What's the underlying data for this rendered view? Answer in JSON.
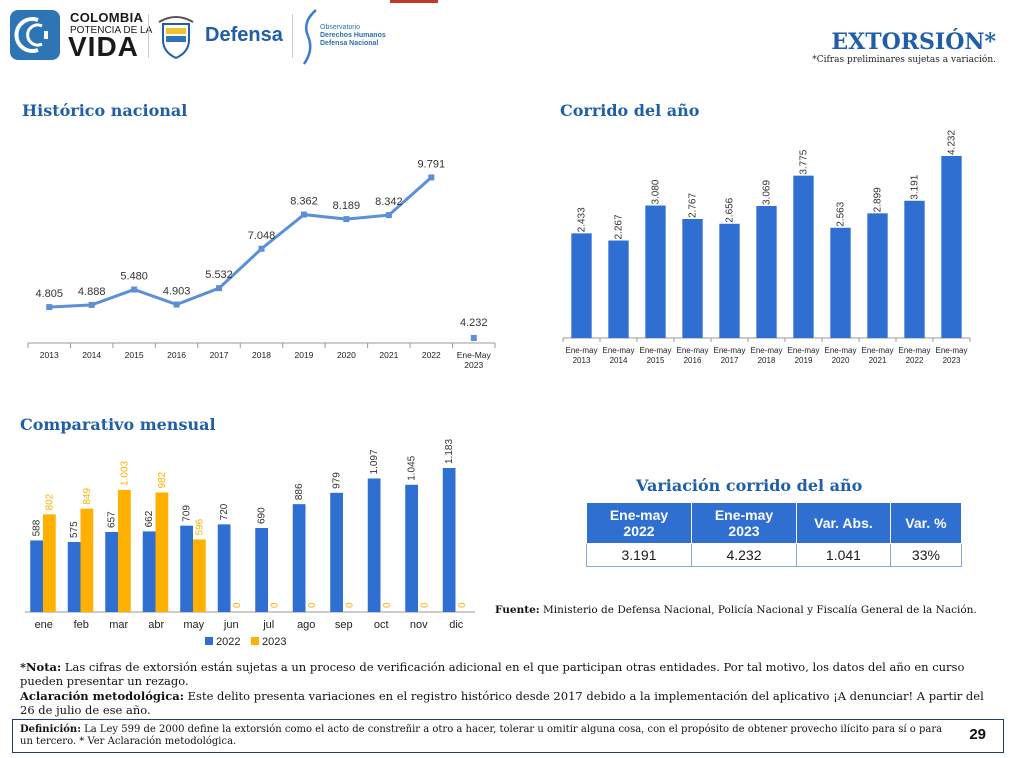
{
  "header": {
    "logo_line1": "COLOMBIA",
    "logo_line2": "POTENCIA DE LA",
    "logo_line3": "VIDA",
    "ministry": "Defensa",
    "observatorio": [
      "Observatorio",
      "Derechos Humanos",
      "Defensa Nacional"
    ],
    "title": "EXTORSIÓN*",
    "subnote": "*Cifras preliminares sujetas a variación."
  },
  "colors": {
    "accent": "#1f5ea8",
    "bar_blue": "#2f6fd1",
    "bar_orange": "#ffb000",
    "line": "#5b8fd6"
  },
  "sections": {
    "historico": "Histórico nacional",
    "corrido": "Corrido del año",
    "comparativo": "Comparativo mensual",
    "variacion": "Variación corrido del año"
  },
  "chart_data": [
    {
      "type": "line",
      "title": "Histórico nacional",
      "categories": [
        "2013",
        "2014",
        "2015",
        "2016",
        "2017",
        "2018",
        "2019",
        "2020",
        "2021",
        "2022"
      ],
      "values": [
        4805,
        4888,
        5480,
        4903,
        5532,
        7048,
        8362,
        8189,
        8342,
        9791
      ],
      "value_labels": [
        "4.805",
        "4.888",
        "5.480",
        "4.903",
        "5.532",
        "7.048",
        "8.362",
        "8.189",
        "8.342",
        "9.791"
      ],
      "extra_point": {
        "category": "Ene-May 2023",
        "value": 4232,
        "label": "4.232"
      },
      "x_tick_labels": [
        "2013",
        "2014",
        "2015",
        "2016",
        "2017",
        "2018",
        "2019",
        "2020",
        "2021",
        "2022",
        "Ene-May 2023"
      ]
    },
    {
      "type": "bar",
      "title": "Corrido del año",
      "categories": [
        "Ene-may 2013",
        "Ene-may 2014",
        "Ene-may 2015",
        "Ene-may 2016",
        "Ene-may 2017",
        "Ene-may 2018",
        "Ene-may 2019",
        "Ene-may 2020",
        "Ene-may 2021",
        "Ene-may 2022",
        "Ene-may 2023"
      ],
      "values": [
        2433,
        2267,
        3080,
        2767,
        2656,
        3069,
        3775,
        2563,
        2899,
        3191,
        4232
      ],
      "value_labels": [
        "2.433",
        "2.267",
        "3.080",
        "2.767",
        "2.656",
        "3.069",
        "3.775",
        "2.563",
        "2.899",
        "3.191",
        "4.232"
      ]
    },
    {
      "type": "bar",
      "title": "Comparativo mensual",
      "categories": [
        "ene",
        "feb",
        "mar",
        "abr",
        "may",
        "jun",
        "jul",
        "ago",
        "sep",
        "oct",
        "nov",
        "dic"
      ],
      "series": [
        {
          "name": "2022",
          "color": "#2f6fd1",
          "values": [
            588,
            575,
            657,
            662,
            709,
            720,
            690,
            886,
            979,
            1097,
            1045,
            1183
          ],
          "labels": [
            "588",
            "575",
            "657",
            "662",
            "709",
            "720",
            "690",
            "886",
            "979",
            "1.097",
            "1.045",
            "1.183"
          ]
        },
        {
          "name": "2023",
          "color": "#ffb000",
          "values": [
            802,
            849,
            1003,
            982,
            596,
            0,
            0,
            0,
            0,
            0,
            0,
            0
          ],
          "labels": [
            "802",
            "849",
            "1.003",
            "982",
            "596",
            "0",
            "0",
            "0",
            "0",
            "0",
            "0",
            "0"
          ]
        }
      ],
      "legend": "bottom"
    }
  ],
  "table": {
    "headers": [
      "Ene-may 2022",
      "Ene-may 2023",
      "Var. Abs.",
      "Var. %"
    ],
    "rows": [
      [
        "3.191",
        "4.232",
        "1.041",
        "33%"
      ]
    ]
  },
  "fuente": {
    "label": "Fuente:",
    "text": "Ministerio de Defensa Nacional, Policía Nacional y Fiscalía General de la Nación."
  },
  "notes": {
    "nota_label": "*Nota:",
    "nota_text": "Las cifras de extorsión están sujetas a un proceso de verificación adicional en el que participan otras entidades. Por tal motivo, los datos del año en curso pueden presentar un rezago.",
    "aclaracion_label": "Aclaración metodológica:",
    "aclaracion_text": "Este delito presenta variaciones en el registro histórico desde 2017 debido a la implementación del aplicativo ¡A denunciar! A partir del 26 de julio de ese año."
  },
  "definicion": {
    "label": "Definición:",
    "text": "La Ley 599 de 2000 define la extorsión como el acto de constreñir a otro a hacer, tolerar u omitir alguna cosa, con el propósito de obtener provecho ilícito para sí o para un tercero. * Ver Aclaración metodológica."
  },
  "page_number": "29"
}
